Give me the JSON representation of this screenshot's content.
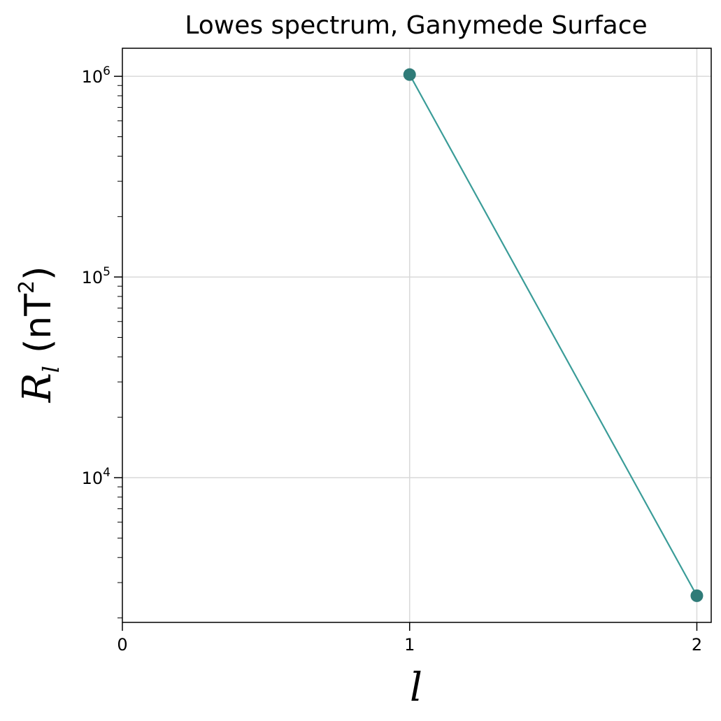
{
  "chart_data": {
    "type": "line",
    "title": "Lowes spectrum, Ganymede  Surface",
    "xlabel": "l",
    "ylabel": {
      "symbol": "R",
      "subscript": "l",
      "unit_open": "(nT",
      "unit_sup": "2",
      "unit_close": ")"
    },
    "yscale": "log",
    "xlim": [
      0,
      2.05
    ],
    "ylim": [
      1900,
      1380000
    ],
    "x_ticks": [
      0,
      1,
      2
    ],
    "y_major_ticks": [
      {
        "value": 10000,
        "base": "10",
        "exp": "4"
      },
      {
        "value": 100000,
        "base": "10",
        "exp": "5"
      },
      {
        "value": 1000000,
        "base": "10",
        "exp": "6"
      }
    ],
    "grid": true,
    "series": [
      {
        "x": [
          1,
          2
        ],
        "y": [
          1020000,
          2580
        ],
        "line_color": "#3a9c98",
        "marker_color": "#2f7b78"
      }
    ]
  }
}
